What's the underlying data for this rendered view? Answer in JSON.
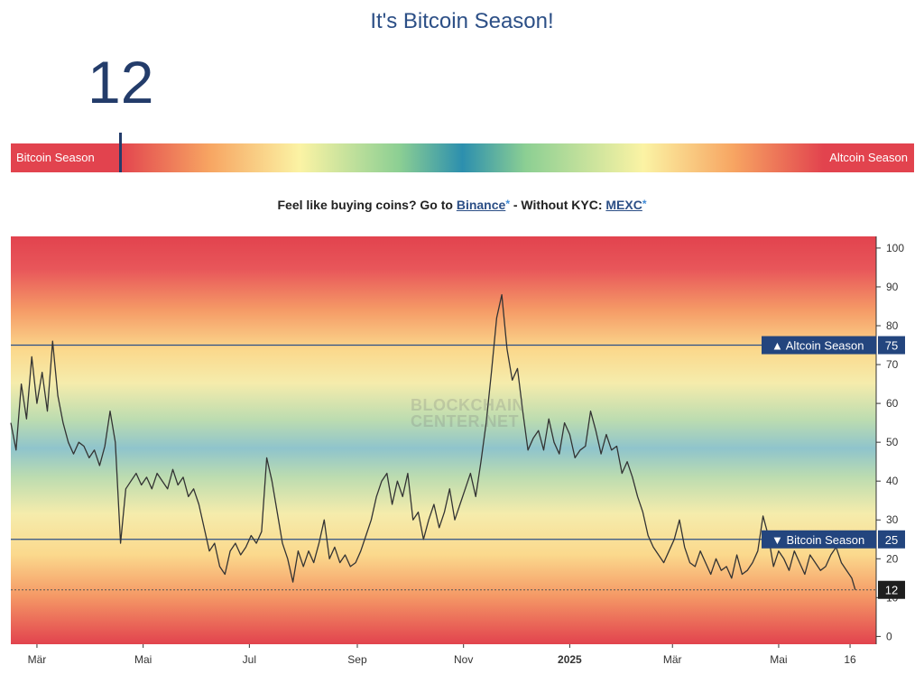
{
  "header": {
    "title": "It's Bitcoin Season!",
    "current_value": "12"
  },
  "gauge": {
    "left_label": "Bitcoin Season",
    "right_label": "Altcoin Season",
    "value": 12
  },
  "promo": {
    "text_before": "Feel like buying coins? Go to ",
    "link1": "Binance",
    "star": "*",
    "text_mid": " - Without KYC: ",
    "link2": "MEXC"
  },
  "watermark": {
    "line1": "BLOCKCHAIN",
    "line2": "CENTER.NET"
  },
  "chart_data": {
    "type": "line",
    "y_ticks": [
      0,
      10,
      20,
      30,
      40,
      50,
      60,
      70,
      80,
      90,
      100
    ],
    "ylim": [
      -2,
      103
    ],
    "x_ticks": [
      "Mär",
      "Mai",
      "Jul",
      "Sep",
      "Nov",
      "2025",
      "Mär",
      "Mai",
      "16"
    ],
    "x_tick_positions": [
      0,
      61,
      122,
      184,
      245,
      306,
      365,
      426,
      467
    ],
    "x_range": [
      -15,
      482
    ],
    "reference_lines": [
      {
        "label": "▲ Altcoin Season",
        "value": 75
      },
      {
        "label": "▼ Bitcoin Season",
        "value": 25
      }
    ],
    "current": {
      "label": "12",
      "value": 12
    },
    "series": [
      {
        "x": [
          -15,
          -12,
          -9,
          -6,
          -3,
          0,
          3,
          6,
          9,
          12,
          15,
          18,
          21,
          24,
          27,
          30,
          33,
          36,
          39,
          42,
          45,
          48,
          51,
          54,
          57,
          60,
          63,
          66,
          69,
          72,
          75,
          78,
          81,
          84,
          87,
          90,
          93,
          96,
          99,
          102,
          105,
          108,
          111,
          114,
          117,
          120,
          123,
          126,
          129,
          132,
          135,
          138,
          141,
          144,
          147,
          150,
          153,
          156,
          159,
          162,
          165,
          168,
          171,
          174,
          177,
          180,
          183,
          186,
          189,
          192,
          195,
          198,
          201,
          204,
          207,
          210,
          213,
          216,
          219,
          222,
          225,
          228,
          231,
          234,
          237,
          240,
          243,
          246,
          249,
          252,
          255,
          258,
          261,
          264,
          267,
          270,
          273,
          276,
          279,
          282,
          285,
          288,
          291,
          294,
          297,
          300,
          303,
          306,
          309,
          312,
          315,
          318,
          321,
          324,
          327,
          330,
          333,
          336,
          339,
          342,
          345,
          348,
          351,
          354,
          357,
          360,
          363,
          366,
          369,
          372,
          375,
          378,
          381,
          384,
          387,
          390,
          393,
          396,
          399,
          402,
          405,
          408,
          411,
          414,
          417,
          420,
          423,
          426,
          429,
          432,
          435,
          438,
          441,
          444,
          447,
          450,
          453,
          456,
          459,
          462,
          465,
          468,
          470
        ],
        "y": [
          55,
          48,
          65,
          56,
          72,
          60,
          68,
          58,
          76,
          62,
          55,
          50,
          47,
          50,
          49,
          46,
          48,
          44,
          49,
          58,
          50,
          24,
          38,
          40,
          42,
          39,
          41,
          38,
          42,
          40,
          38,
          43,
          39,
          41,
          36,
          38,
          34,
          28,
          22,
          24,
          18,
          16,
          22,
          24,
          21,
          23,
          26,
          24,
          27,
          46,
          40,
          32,
          24,
          20,
          14,
          22,
          18,
          22,
          19,
          24,
          30,
          20,
          23,
          19,
          21,
          18,
          19,
          22,
          26,
          30,
          36,
          40,
          42,
          34,
          40,
          36,
          42,
          30,
          32,
          25,
          30,
          34,
          28,
          32,
          38,
          30,
          34,
          38,
          42,
          36,
          45,
          55,
          68,
          82,
          88,
          74,
          66,
          69,
          58,
          48,
          51,
          53,
          48,
          56,
          50,
          47,
          55,
          52,
          46,
          48,
          49,
          58,
          53,
          47,
          52,
          48,
          49,
          42,
          45,
          41,
          36,
          32,
          26,
          23,
          21,
          19,
          22,
          25,
          30,
          23,
          19,
          18,
          22,
          19,
          16,
          20,
          17,
          18,
          15,
          21,
          16,
          17,
          19,
          22,
          31,
          26,
          18,
          22,
          20,
          17,
          22,
          19,
          16,
          21,
          19,
          17,
          18,
          21,
          23,
          19,
          17,
          15,
          12
        ]
      }
    ]
  }
}
